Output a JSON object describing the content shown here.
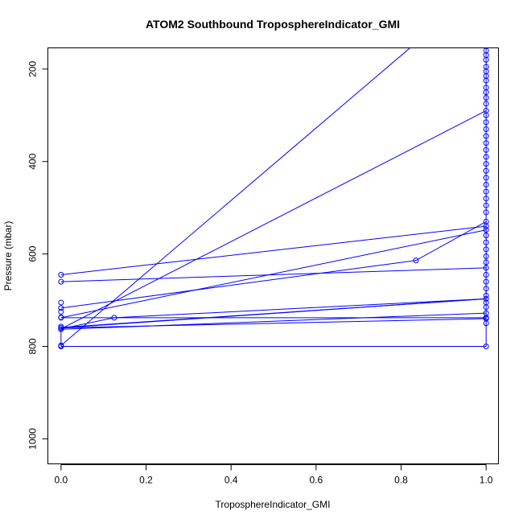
{
  "chart_data": {
    "type": "line",
    "title": "ATOM2 Southbound TroposphereIndicator_GMI",
    "xlabel": "TroposphereIndicator_GMI",
    "ylabel": "Pressure (mbar)",
    "xlim": [
      -0.03,
      1.03
    ],
    "ylim": [
      1055,
      155
    ],
    "y_reversed": true,
    "xticks": [
      0.0,
      0.2,
      0.4,
      0.6,
      0.8,
      1.0
    ],
    "xtick_labels": [
      "0.0",
      "0.2",
      "0.4",
      "0.6",
      "0.8",
      "1.0"
    ],
    "yticks": [
      200,
      400,
      600,
      800,
      1000
    ],
    "ytick_labels": [
      "200",
      "400",
      "600",
      "800",
      "1000"
    ],
    "grid": false,
    "series_color": "#0000ff",
    "series": [
      {
        "segments": [
          [
            [
              0.0,
              800
            ],
            [
              0.0,
              785
            ],
            [
              0.0,
              770
            ],
            [
              0.0,
              763
            ],
            [
              0.0,
              760
            ],
            [
              0.0,
              757
            ]
          ],
          [
            [
              0.0,
              800
            ],
            [
              1.0,
              800
            ]
          ],
          [
            [
              0.0,
              798
            ],
            [
              0.82,
              155
            ]
          ],
          [
            [
              0.0,
              762
            ],
            [
              1.0,
              290
            ]
          ],
          [
            [
              0.0,
              762
            ],
            [
              0.125,
              738
            ],
            [
              1.0,
              697
            ]
          ],
          [
            [
              0.0,
              760
            ],
            [
              1.0,
              697
            ]
          ],
          [
            [
              0.0,
              759
            ],
            [
              1.0,
              697
            ]
          ],
          [
            [
              0.0,
              763
            ],
            [
              1.0,
              728
            ]
          ],
          [
            [
              0.0,
              760
            ],
            [
              1.0,
              740
            ]
          ],
          [
            [
              0.0,
              738
            ],
            [
              1.0,
              738
            ]
          ],
          [
            [
              0.0,
              738
            ],
            [
              1.0,
              548
            ]
          ],
          [
            [
              0.0,
              717
            ],
            [
              0.835,
              614
            ],
            [
              1.0,
              530
            ]
          ],
          [
            [
              0.0,
              645
            ],
            [
              1.0,
              540
            ]
          ],
          [
            [
              0.0,
              660
            ],
            [
              1.0,
              630
            ]
          ],
          [
            [
              1.0,
              155
            ],
            [
              1.0,
              800
            ]
          ]
        ],
        "points": [
          [
            0.0,
            800
          ],
          [
            0.0,
            798
          ],
          [
            0.0,
            763
          ],
          [
            0.0,
            760
          ],
          [
            0.0,
            757
          ],
          [
            0.0,
            738
          ],
          [
            0.0,
            737
          ],
          [
            0.0,
            725
          ],
          [
            0.0,
            717
          ],
          [
            0.0,
            705
          ],
          [
            0.0,
            660
          ],
          [
            0.0,
            645
          ],
          [
            0.125,
            738
          ],
          [
            0.835,
            614
          ],
          [
            1.0,
            160
          ],
          [
            1.0,
            170
          ],
          [
            1.0,
            180
          ],
          [
            1.0,
            195
          ],
          [
            1.0,
            205
          ],
          [
            1.0,
            215
          ],
          [
            1.0,
            225
          ],
          [
            1.0,
            240
          ],
          [
            1.0,
            250
          ],
          [
            1.0,
            262
          ],
          [
            1.0,
            275
          ],
          [
            1.0,
            290
          ],
          [
            1.0,
            300
          ],
          [
            1.0,
            315
          ],
          [
            1.0,
            330
          ],
          [
            1.0,
            345
          ],
          [
            1.0,
            360
          ],
          [
            1.0,
            375
          ],
          [
            1.0,
            390
          ],
          [
            1.0,
            405
          ],
          [
            1.0,
            420
          ],
          [
            1.0,
            435
          ],
          [
            1.0,
            450
          ],
          [
            1.0,
            465
          ],
          [
            1.0,
            480
          ],
          [
            1.0,
            495
          ],
          [
            1.0,
            510
          ],
          [
            1.0,
            530
          ],
          [
            1.0,
            540
          ],
          [
            1.0,
            548
          ],
          [
            1.0,
            560
          ],
          [
            1.0,
            575
          ],
          [
            1.0,
            590
          ],
          [
            1.0,
            605
          ],
          [
            1.0,
            618
          ],
          [
            1.0,
            630
          ],
          [
            1.0,
            645
          ],
          [
            1.0,
            660
          ],
          [
            1.0,
            675
          ],
          [
            1.0,
            690
          ],
          [
            1.0,
            697
          ],
          [
            1.0,
            705
          ],
          [
            1.0,
            715
          ],
          [
            1.0,
            728
          ],
          [
            1.0,
            738
          ],
          [
            1.0,
            740
          ],
          [
            1.0,
            750
          ],
          [
            1.0,
            800
          ]
        ]
      }
    ]
  }
}
